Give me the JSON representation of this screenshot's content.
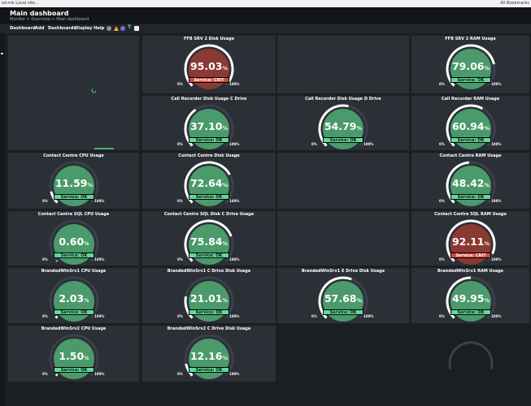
{
  "browser": {
    "left_text": "ed:mk Local site...",
    "right_text": "All Bookmarks"
  },
  "page": {
    "title": "Main dashboard",
    "breadcrumb": "Monitor > Overview > Main dashboard"
  },
  "menu": [
    "Dashboard",
    "Add",
    "Dashboards",
    "Display",
    "Help"
  ],
  "colors": {
    "ok": "#5ed99a",
    "crit": "#d44a3a",
    "gauge_ok_fill": "#4a9a6b",
    "gauge_crit_fill": "#8a3a33",
    "panel": "#2b2f36",
    "background": "#1b1e23"
  },
  "gauges": [
    {
      "title": "FFB SRV 2 Disk Usage",
      "value": "95.03",
      "unit": "%",
      "status": "Service: CRIT",
      "state": "crit",
      "min": "0%",
      "max": "100%",
      "fraction": 0.9503
    },
    {
      "title": "FFB SRV 2 RAM Usage",
      "value": "79.06",
      "unit": "%",
      "status": "Service: OK",
      "state": "ok",
      "min": "0%",
      "max": "100%",
      "fraction": 0.7906
    },
    {
      "title": "Call Recorder Disk Usage C Drive",
      "value": "37.10",
      "unit": "%",
      "status": "Service: OK",
      "state": "ok",
      "min": "0%",
      "max": "100%",
      "fraction": 0.371
    },
    {
      "title": "Call Recorder Disk Usage D Drive",
      "value": "54.79",
      "unit": "%",
      "status": "Service: OK",
      "state": "ok",
      "min": "0%",
      "max": "100%",
      "fraction": 0.5479
    },
    {
      "title": "Call Recorder RAM Usage",
      "value": "60.94",
      "unit": "%",
      "status": "Service: OK",
      "state": "ok",
      "min": "0%",
      "max": "100%",
      "fraction": 0.6094
    },
    {
      "title": "Contact Centre CPU Usage",
      "value": "11.59",
      "unit": "%",
      "status": "Service: OK",
      "state": "ok",
      "min": "0%",
      "max": "100%",
      "fraction": 0.1159
    },
    {
      "title": "Contact Centre Disk Usage",
      "value": "72.64",
      "unit": "%",
      "status": "Service: OK",
      "state": "ok",
      "min": "0%",
      "max": "100%",
      "fraction": 0.7264
    },
    {
      "title": "Contact Centre RAM Usage",
      "value": "48.42",
      "unit": "%",
      "status": "Service: OK",
      "state": "ok",
      "min": "0%",
      "max": "100%",
      "fraction": 0.4842
    },
    {
      "title": "Contact Centre SQL CPU Usage",
      "value": "0.60",
      "unit": "%",
      "status": "Service: OK",
      "state": "ok",
      "min": "0%",
      "max": "100%",
      "fraction": 0.006
    },
    {
      "title": "Contact Centre SQL Disk C Drive Usage",
      "value": "75.84",
      "unit": "%",
      "status": "Service: OK",
      "state": "ok",
      "min": "0%",
      "max": "100%",
      "fraction": 0.7584
    },
    {
      "title": "Contact Centre SQL RAM Usage",
      "value": "92.11",
      "unit": "%",
      "status": "Service: CRIT",
      "state": "crit",
      "min": "0%",
      "max": "100%",
      "fraction": 0.9211
    },
    {
      "title": "BrandedWinSrv1 CPU Usage",
      "value": "2.03",
      "unit": "%",
      "status": "Service: OK",
      "state": "ok",
      "min": "0%",
      "max": "100%",
      "fraction": 0.0203
    },
    {
      "title": "BrandedWinSrv1 C Drive Disk Usage",
      "value": "21.01",
      "unit": "%",
      "status": "Service: OK",
      "state": "ok",
      "min": "0%",
      "max": "100%",
      "fraction": 0.2101
    },
    {
      "title": "BrandedWinSrv1 E Drive Disk Usage",
      "value": "57.68",
      "unit": "%",
      "status": "Service: OK",
      "state": "ok",
      "min": "0%",
      "max": "100%",
      "fraction": 0.5768
    },
    {
      "title": "BrandedWinSrv1 RAM Usage",
      "value": "49.95",
      "unit": "%",
      "status": "Service: OK",
      "state": "ok",
      "min": "0%",
      "max": "100%",
      "fraction": 0.4995
    },
    {
      "title": "BrandedWinSrv2 CPU Usage",
      "value": "1.50",
      "unit": "%",
      "status": "Service: OK",
      "state": "ok",
      "min": "0%",
      "max": "100%",
      "fraction": 0.015
    },
    {
      "title": "BrandedWinSrv2 C Drive Disk Usage",
      "value": "12.16",
      "unit": "%",
      "status": "Service: OK",
      "state": "ok",
      "min": "0%",
      "max": "100%",
      "fraction": 0.1216
    }
  ]
}
